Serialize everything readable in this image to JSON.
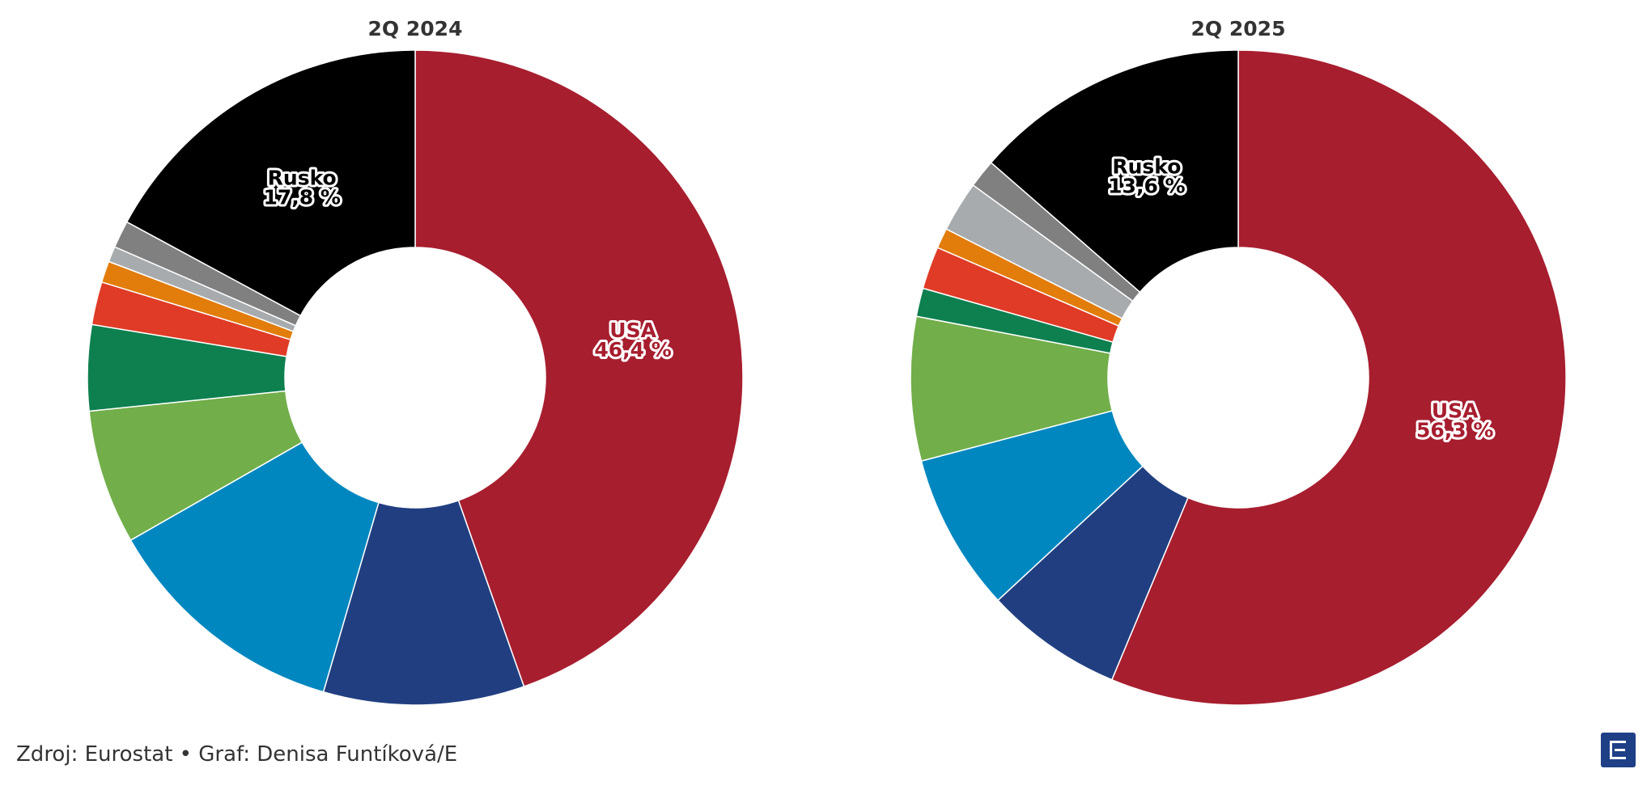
{
  "chart_data": [
    {
      "type": "pie",
      "title": "2Q 2024",
      "slices": [
        {
          "name": "USA",
          "label": "USA",
          "value_label": "46,4 %",
          "value": 46.4,
          "color": "#a71e2f",
          "labeled": true
        },
        {
          "value": 10.3,
          "color": "#213f80"
        },
        {
          "value": 12.7,
          "color": "#0087c0"
        },
        {
          "value": 6.9,
          "color": "#72ae4a"
        },
        {
          "value": 4.4,
          "color": "#0e8050"
        },
        {
          "value": 2.2,
          "color": "#df3b26"
        },
        {
          "value": 1.1,
          "color": "#e27c0b"
        },
        {
          "value": 0.8,
          "color": "#a8abae"
        },
        {
          "value": 1.4,
          "color": "#808080"
        },
        {
          "name": "Rusko",
          "label": "Rusko",
          "value_label": "17,8 %",
          "value": 17.8,
          "color": "#000000",
          "labeled": true
        }
      ]
    },
    {
      "type": "pie",
      "title": "2Q 2025",
      "slices": [
        {
          "name": "USA",
          "label": "USA",
          "value_label": "56,3 %",
          "value": 56.3,
          "color": "#a71e2f",
          "labeled": true
        },
        {
          "value": 6.8,
          "color": "#213f80"
        },
        {
          "value": 7.8,
          "color": "#0087c0"
        },
        {
          "value": 7.1,
          "color": "#72ae4a"
        },
        {
          "value": 1.4,
          "color": "#0e8050"
        },
        {
          "value": 2.1,
          "color": "#df3b26"
        },
        {
          "value": 1.0,
          "color": "#e27c0b"
        },
        {
          "value": 2.5,
          "color": "#a8abae"
        },
        {
          "value": 1.4,
          "color": "#808080"
        },
        {
          "name": "Rusko",
          "label": "Rusko",
          "value_label": "13,6 %",
          "value": 13.6,
          "color": "#000000",
          "labeled": true
        }
      ]
    }
  ],
  "footer": {
    "source": "Zdroj: Eurostat • Graf: Denisa Funtíková/E"
  }
}
